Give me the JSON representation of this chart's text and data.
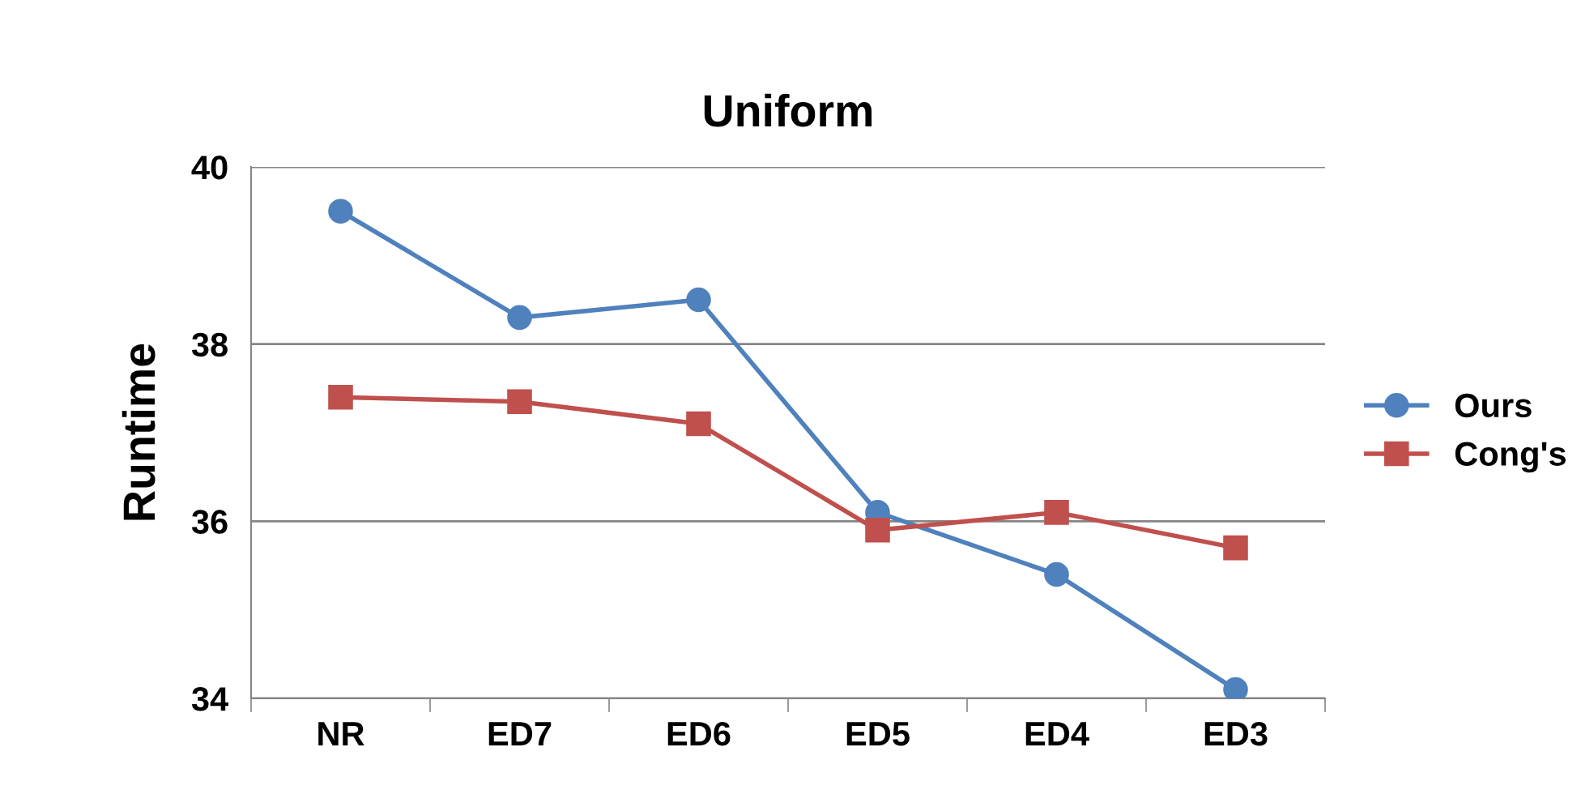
{
  "chart_data": {
    "type": "line",
    "title": "Uniform",
    "ylabel": "Runtime",
    "categories": [
      "NR",
      "ED7",
      "ED6",
      "ED5",
      "ED4",
      "ED3"
    ],
    "series": [
      {
        "name": "Ours",
        "color": "#4f81bd",
        "marker": "circle",
        "values": [
          39.5,
          38.3,
          38.5,
          36.1,
          35.4,
          34.1
        ]
      },
      {
        "name": "Cong's",
        "color": "#c0504d",
        "marker": "square",
        "values": [
          37.4,
          37.35,
          37.1,
          35.9,
          36.1,
          35.7
        ]
      }
    ],
    "ylim": [
      34,
      40
    ],
    "yticks": [
      34,
      36,
      38,
      40
    ],
    "grid": "y",
    "legend": "right",
    "line_style": "solid"
  }
}
